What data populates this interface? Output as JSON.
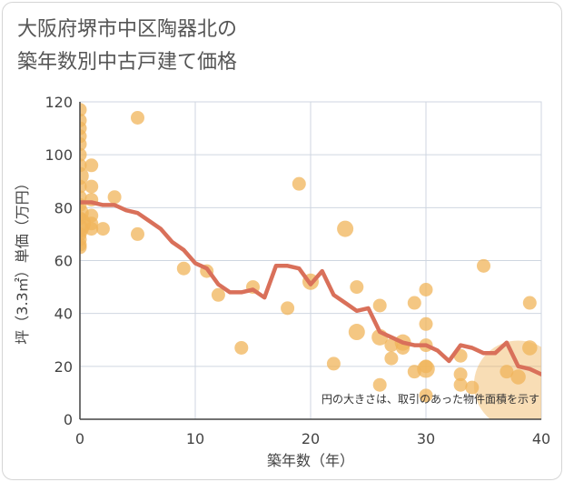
{
  "title_line1": "大阪府堺市中区陶器北の",
  "title_line2": "築年数別中古戸建て価格",
  "chart_data": {
    "type": "scatter",
    "title": "大阪府堺市中区陶器北の築年数別中古戸建て価格",
    "xlabel": "築年数（年）",
    "ylabel": "坪（3.3㎡）単価（万円）",
    "xlim": [
      0,
      40
    ],
    "ylim": [
      0,
      120
    ],
    "xticks": [
      0,
      10,
      20,
      30,
      40
    ],
    "yticks": [
      0,
      20,
      40,
      60,
      80,
      100,
      120
    ],
    "grid": true,
    "annotation": "円の大きさは、取引のあった物件面積を示す",
    "colors": {
      "points": "#f0b45a",
      "line": "#d9705a",
      "grid": "#cfd6e0"
    },
    "scatter_points": [
      {
        "x": 0,
        "y": 117,
        "size": 1
      },
      {
        "x": 0,
        "y": 113,
        "size": 1
      },
      {
        "x": 0,
        "y": 110,
        "size": 1
      },
      {
        "x": 0,
        "y": 107,
        "size": 1
      },
      {
        "x": 0,
        "y": 104,
        "size": 1
      },
      {
        "x": 0,
        "y": 100,
        "size": 1
      },
      {
        "x": 0,
        "y": 96,
        "size": 1
      },
      {
        "x": 0,
        "y": 92,
        "size": 1.3
      },
      {
        "x": 0,
        "y": 88,
        "size": 1
      },
      {
        "x": 0,
        "y": 84,
        "size": 1
      },
      {
        "x": 0,
        "y": 81,
        "size": 1
      },
      {
        "x": 0,
        "y": 78,
        "size": 1.3
      },
      {
        "x": 0,
        "y": 76,
        "size": 1
      },
      {
        "x": 0,
        "y": 74,
        "size": 1.6
      },
      {
        "x": 0,
        "y": 72,
        "size": 1.3
      },
      {
        "x": 0,
        "y": 70,
        "size": 1
      },
      {
        "x": 0,
        "y": 68,
        "size": 1
      },
      {
        "x": 0,
        "y": 66,
        "size": 1
      },
      {
        "x": 0,
        "y": 65,
        "size": 1
      },
      {
        "x": 1,
        "y": 96,
        "size": 1
      },
      {
        "x": 1,
        "y": 88,
        "size": 1
      },
      {
        "x": 1,
        "y": 83,
        "size": 1
      },
      {
        "x": 1,
        "y": 77,
        "size": 1
      },
      {
        "x": 1,
        "y": 74,
        "size": 1
      },
      {
        "x": 1,
        "y": 72,
        "size": 1
      },
      {
        "x": 2,
        "y": 72,
        "size": 1
      },
      {
        "x": 3,
        "y": 84,
        "size": 1
      },
      {
        "x": 5,
        "y": 114,
        "size": 1
      },
      {
        "x": 5,
        "y": 70,
        "size": 1
      },
      {
        "x": 9,
        "y": 57,
        "size": 1
      },
      {
        "x": 11,
        "y": 56,
        "size": 1
      },
      {
        "x": 12,
        "y": 47,
        "size": 1
      },
      {
        "x": 14,
        "y": 27,
        "size": 1
      },
      {
        "x": 15,
        "y": 50,
        "size": 1
      },
      {
        "x": 18,
        "y": 42,
        "size": 1
      },
      {
        "x": 19,
        "y": 89,
        "size": 1
      },
      {
        "x": 20,
        "y": 52,
        "size": 1.2
      },
      {
        "x": 22,
        "y": 21,
        "size": 1
      },
      {
        "x": 23,
        "y": 72,
        "size": 1.2
      },
      {
        "x": 24,
        "y": 50,
        "size": 1
      },
      {
        "x": 24,
        "y": 33,
        "size": 1.2
      },
      {
        "x": 26,
        "y": 43,
        "size": 1
      },
      {
        "x": 26,
        "y": 31,
        "size": 1.2
      },
      {
        "x": 26,
        "y": 13,
        "size": 1
      },
      {
        "x": 27,
        "y": 28,
        "size": 1
      },
      {
        "x": 27,
        "y": 23,
        "size": 1
      },
      {
        "x": 28,
        "y": 29,
        "size": 1.2
      },
      {
        "x": 28,
        "y": 27,
        "size": 1
      },
      {
        "x": 29,
        "y": 44,
        "size": 1
      },
      {
        "x": 29,
        "y": 18,
        "size": 1
      },
      {
        "x": 30,
        "y": 49,
        "size": 1
      },
      {
        "x": 30,
        "y": 36,
        "size": 1
      },
      {
        "x": 30,
        "y": 28,
        "size": 1
      },
      {
        "x": 30,
        "y": 20,
        "size": 1
      },
      {
        "x": 30,
        "y": 19,
        "size": 1.3
      },
      {
        "x": 30,
        "y": 9,
        "size": 1
      },
      {
        "x": 33,
        "y": 24,
        "size": 1
      },
      {
        "x": 33,
        "y": 17,
        "size": 1
      },
      {
        "x": 33,
        "y": 13,
        "size": 1
      },
      {
        "x": 34,
        "y": 12,
        "size": 1
      },
      {
        "x": 35,
        "y": 58,
        "size": 1
      },
      {
        "x": 37,
        "y": 18,
        "size": 1
      },
      {
        "x": 38,
        "y": 16,
        "size": 1.1
      },
      {
        "x": 38,
        "y": 13,
        "size": 6.5
      },
      {
        "x": 39,
        "y": 44,
        "size": 1
      },
      {
        "x": 39,
        "y": 27,
        "size": 1.1
      }
    ],
    "trend_line": {
      "x": [
        0,
        1,
        2,
        3,
        4,
        5,
        6,
        7,
        8,
        9,
        10,
        11,
        12,
        13,
        14,
        15,
        16,
        17,
        18,
        19,
        20,
        21,
        22,
        23,
        24,
        25,
        26,
        27,
        28,
        29,
        30,
        31,
        32,
        33,
        34,
        35,
        36,
        37,
        38,
        39,
        40
      ],
      "y": [
        82,
        82,
        81,
        81,
        79,
        78,
        75,
        72,
        67,
        64,
        59,
        57,
        51,
        48,
        48,
        49,
        46,
        58,
        58,
        57,
        51,
        56,
        47,
        44,
        41,
        42,
        33,
        31,
        29,
        28,
        28,
        26,
        22,
        28,
        27,
        25,
        25,
        29,
        20,
        19,
        17
      ]
    }
  }
}
